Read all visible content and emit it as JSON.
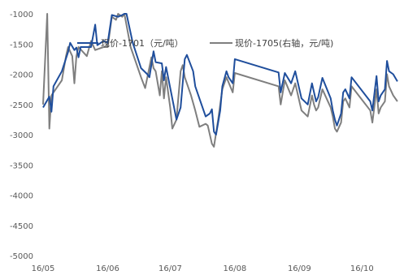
{
  "chart_data": {
    "type": "line",
    "title": "",
    "xlabel": "",
    "ylabel": "",
    "ylim": [
      -5000,
      -1000
    ],
    "yticks": [
      -1000,
      -1500,
      -2000,
      -2500,
      -3000,
      -3500,
      -4000,
      -4500,
      -5000
    ],
    "xticks": [
      "16/05",
      "16/06",
      "16/07",
      "16/08",
      "16/09",
      "16/10"
    ],
    "legend_position": "top",
    "grid": false,
    "series": [
      {
        "name": "现价-1701（元/吨）",
        "color": "#1F4E9C",
        "values": [
          [
            "2016-05-01",
            -2550
          ],
          [
            "2016-05-04",
            -2370
          ],
          [
            "2016-05-05",
            -2620
          ],
          [
            "2016-05-06",
            -2200
          ],
          [
            "2016-05-10",
            -1950
          ],
          [
            "2016-05-13",
            -1630
          ],
          [
            "2016-05-14",
            -1480
          ],
          [
            "2016-05-16",
            -1600
          ],
          [
            "2016-05-17",
            -1560
          ],
          [
            "2016-05-18",
            -1720
          ],
          [
            "2016-05-19",
            -1550
          ],
          [
            "2016-05-24",
            -1550
          ],
          [
            "2016-05-26",
            -1180
          ],
          [
            "2016-05-27",
            -1520
          ],
          [
            "2016-05-30",
            -1450
          ],
          [
            "2016-06-01",
            -1480
          ],
          [
            "2016-06-03",
            -1020
          ],
          [
            "2016-06-06",
            -1050
          ],
          [
            "2016-06-08",
            -1020
          ],
          [
            "2016-06-09",
            -1000
          ],
          [
            "2016-06-10",
            -1000
          ],
          [
            "2016-06-13",
            -1480
          ],
          [
            "2016-06-17",
            -1900
          ],
          [
            "2016-06-20",
            -2000
          ],
          [
            "2016-06-21",
            -2050
          ],
          [
            "2016-06-23",
            -1620
          ],
          [
            "2016-06-24",
            -1800
          ],
          [
            "2016-06-27",
            -1820
          ],
          [
            "2016-06-28",
            -2100
          ],
          [
            "2016-06-29",
            -1880
          ],
          [
            "2016-06-30",
            -2050
          ],
          [
            "2016-07-04",
            -2750
          ],
          [
            "2016-07-06",
            -2550
          ],
          [
            "2016-07-08",
            -1750
          ],
          [
            "2016-07-09",
            -1680
          ],
          [
            "2016-07-12",
            -1950
          ],
          [
            "2016-07-13",
            -2200
          ],
          [
            "2016-07-15",
            -2400
          ],
          [
            "2016-07-18",
            -2700
          ],
          [
            "2016-07-20",
            -2650
          ],
          [
            "2016-07-21",
            -2580
          ],
          [
            "2016-07-22",
            -2950
          ],
          [
            "2016-07-23",
            -3000
          ],
          [
            "2016-07-25",
            -2600
          ],
          [
            "2016-07-26",
            -2200
          ],
          [
            "2016-07-28",
            -1950
          ],
          [
            "2016-07-29",
            -2050
          ],
          [
            "2016-07-31",
            -2150
          ],
          [
            "2016-08-01",
            -1750
          ],
          [
            "2016-08-22",
            -1970
          ],
          [
            "2016-08-23",
            -2300
          ],
          [
            "2016-08-25",
            -1980
          ],
          [
            "2016-08-28",
            -2150
          ],
          [
            "2016-08-30",
            -1950
          ],
          [
            "2016-09-02",
            -2400
          ],
          [
            "2016-09-05",
            -2500
          ],
          [
            "2016-09-07",
            -2150
          ],
          [
            "2016-09-08",
            -2300
          ],
          [
            "2016-09-09",
            -2450
          ],
          [
            "2016-09-10",
            -2380
          ],
          [
            "2016-09-12",
            -2060
          ],
          [
            "2016-09-16",
            -2400
          ],
          [
            "2016-09-17",
            -2600
          ],
          [
            "2016-09-18",
            -2750
          ],
          [
            "2016-09-19",
            -2850
          ],
          [
            "2016-09-21",
            -2650
          ],
          [
            "2016-09-22",
            -2300
          ],
          [
            "2016-09-23",
            -2250
          ],
          [
            "2016-09-25",
            -2400
          ],
          [
            "2016-09-26",
            -2050
          ],
          [
            "2016-10-05",
            -2450
          ],
          [
            "2016-10-06",
            -2600
          ],
          [
            "2016-10-08",
            -2030
          ],
          [
            "2016-10-09",
            -2450
          ],
          [
            "2016-10-10",
            -2350
          ],
          [
            "2016-10-12",
            -2250
          ],
          [
            "2016-10-13",
            -1780
          ],
          [
            "2016-10-14",
            -1950
          ],
          [
            "2016-10-16",
            -2000
          ],
          [
            "2016-10-18",
            -2120
          ]
        ]
      },
      {
        "name": "现价-1705(右轴，元/吨)",
        "color": "#7F7F7F",
        "values": [
          [
            "2016-05-01",
            -2500
          ],
          [
            "2016-05-03",
            -1000
          ],
          [
            "2016-05-04",
            -2900
          ],
          [
            "2016-05-05",
            -2350
          ],
          [
            "2016-05-10",
            -2100
          ],
          [
            "2016-05-12",
            -1700
          ],
          [
            "2016-05-13",
            -1550
          ],
          [
            "2016-05-15",
            -1700
          ],
          [
            "2016-05-16",
            -2150
          ],
          [
            "2016-05-17",
            -1700
          ],
          [
            "2016-05-18",
            -1550
          ],
          [
            "2016-05-22",
            -1700
          ],
          [
            "2016-05-24",
            -1450
          ],
          [
            "2016-05-26",
            -1600
          ],
          [
            "2016-05-30",
            -1550
          ],
          [
            "2016-06-01",
            -1550
          ],
          [
            "2016-06-03",
            -1050
          ],
          [
            "2016-06-05",
            -1100
          ],
          [
            "2016-06-06",
            -1000
          ],
          [
            "2016-06-08",
            -1050
          ],
          [
            "2016-06-09",
            -1000
          ],
          [
            "2016-06-12",
            -1550
          ],
          [
            "2016-06-17",
            -2050
          ],
          [
            "2016-06-19",
            -2230
          ],
          [
            "2016-06-22",
            -1720
          ],
          [
            "2016-06-23",
            -1900
          ],
          [
            "2016-06-24",
            -1950
          ],
          [
            "2016-06-26",
            -2350
          ],
          [
            "2016-06-27",
            -1950
          ],
          [
            "2016-06-28",
            -2400
          ],
          [
            "2016-06-29",
            -2050
          ],
          [
            "2016-07-01",
            -2550
          ],
          [
            "2016-07-02",
            -2900
          ],
          [
            "2016-07-04",
            -2750
          ],
          [
            "2016-07-06",
            -1950
          ],
          [
            "2016-07-07",
            -1850
          ],
          [
            "2016-07-08",
            -2050
          ],
          [
            "2016-07-11",
            -2350
          ],
          [
            "2016-07-13",
            -2600
          ],
          [
            "2016-07-15",
            -2870
          ],
          [
            "2016-07-18",
            -2820
          ],
          [
            "2016-07-19",
            -2850
          ],
          [
            "2016-07-21",
            -3150
          ],
          [
            "2016-07-22",
            -3200
          ],
          [
            "2016-07-24",
            -2750
          ],
          [
            "2016-07-26",
            -2250
          ],
          [
            "2016-07-28",
            -2050
          ],
          [
            "2016-07-31",
            -2300
          ],
          [
            "2016-08-01",
            -1980
          ],
          [
            "2016-08-22",
            -2200
          ],
          [
            "2016-08-23",
            -2500
          ],
          [
            "2016-08-25",
            -2100
          ],
          [
            "2016-08-28",
            -2350
          ],
          [
            "2016-08-30",
            -2150
          ],
          [
            "2016-09-02",
            -2600
          ],
          [
            "2016-09-05",
            -2700
          ],
          [
            "2016-09-07",
            -2350
          ],
          [
            "2016-09-08",
            -2500
          ],
          [
            "2016-09-09",
            -2600
          ],
          [
            "2016-09-10",
            -2550
          ],
          [
            "2016-09-12",
            -2250
          ],
          [
            "2016-09-16",
            -2550
          ],
          [
            "2016-09-17",
            -2700
          ],
          [
            "2016-09-18",
            -2900
          ],
          [
            "2016-09-19",
            -2950
          ],
          [
            "2016-09-21",
            -2800
          ],
          [
            "2016-09-22",
            -2450
          ],
          [
            "2016-09-23",
            -2400
          ],
          [
            "2016-09-25",
            -2550
          ],
          [
            "2016-09-26",
            -2200
          ],
          [
            "2016-10-05",
            -2600
          ],
          [
            "2016-10-06",
            -2800
          ],
          [
            "2016-10-08",
            -2250
          ],
          [
            "2016-10-09",
            -2650
          ],
          [
            "2016-10-10",
            -2550
          ],
          [
            "2016-10-12",
            -2450
          ],
          [
            "2016-10-13",
            -2000
          ],
          [
            "2016-10-14",
            -2200
          ],
          [
            "2016-10-16",
            -2350
          ],
          [
            "2016-10-18",
            -2450
          ]
        ]
      }
    ]
  }
}
